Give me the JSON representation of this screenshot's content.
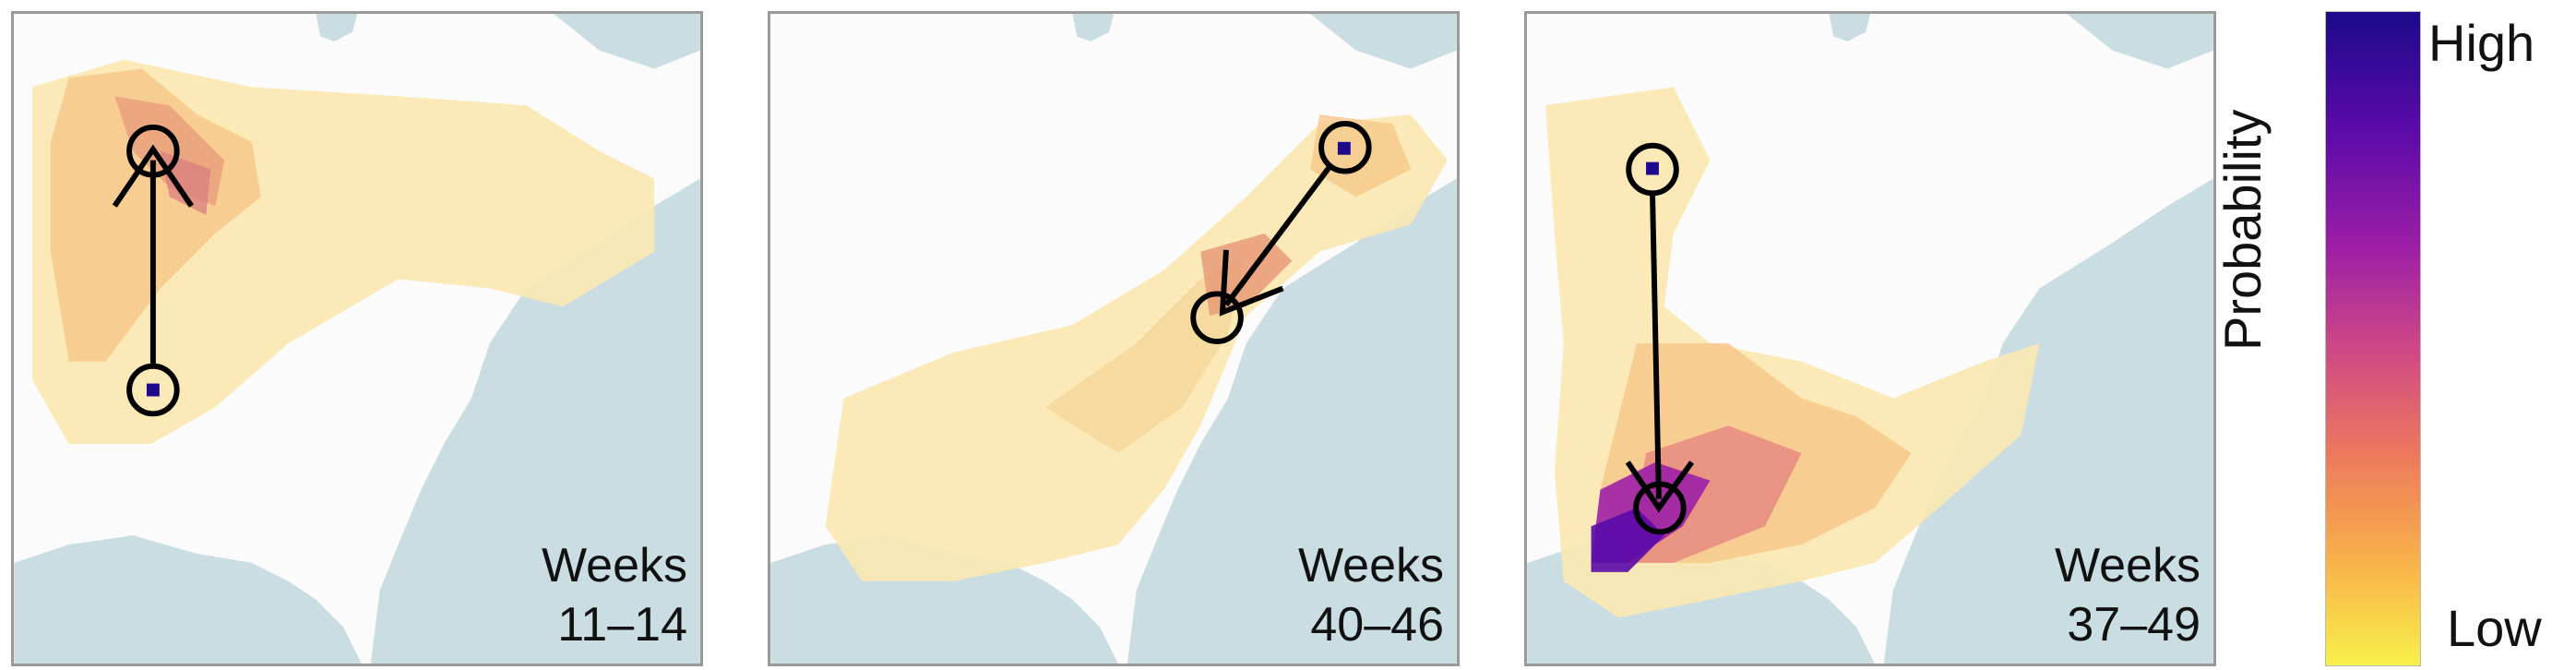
{
  "panels": [
    {
      "weeks_label": "Weeks",
      "weeks_range": "11–14",
      "arrow": {
        "from": "south",
        "to": "north"
      }
    },
    {
      "weeks_label": "Weeks",
      "weeks_range": "40–46",
      "arrow": {
        "from": "northeast",
        "to": "southwest"
      }
    },
    {
      "weeks_label": "Weeks",
      "weeks_range": "37–49",
      "arrow": {
        "from": "north",
        "to": "south"
      }
    }
  ],
  "legend": {
    "title": "Probability",
    "high_label": "High",
    "low_label": "Low",
    "colors": [
      "#1c0a8a",
      "#5b0aa8",
      "#9c1fa6",
      "#cf4a84",
      "#ec7a5c",
      "#f8b14a",
      "#f8f04a"
    ]
  },
  "colors": {
    "water": "#c9dde3",
    "land": "#fbfbfb",
    "border": "#9a9a9a",
    "arrow": "#000000"
  }
}
